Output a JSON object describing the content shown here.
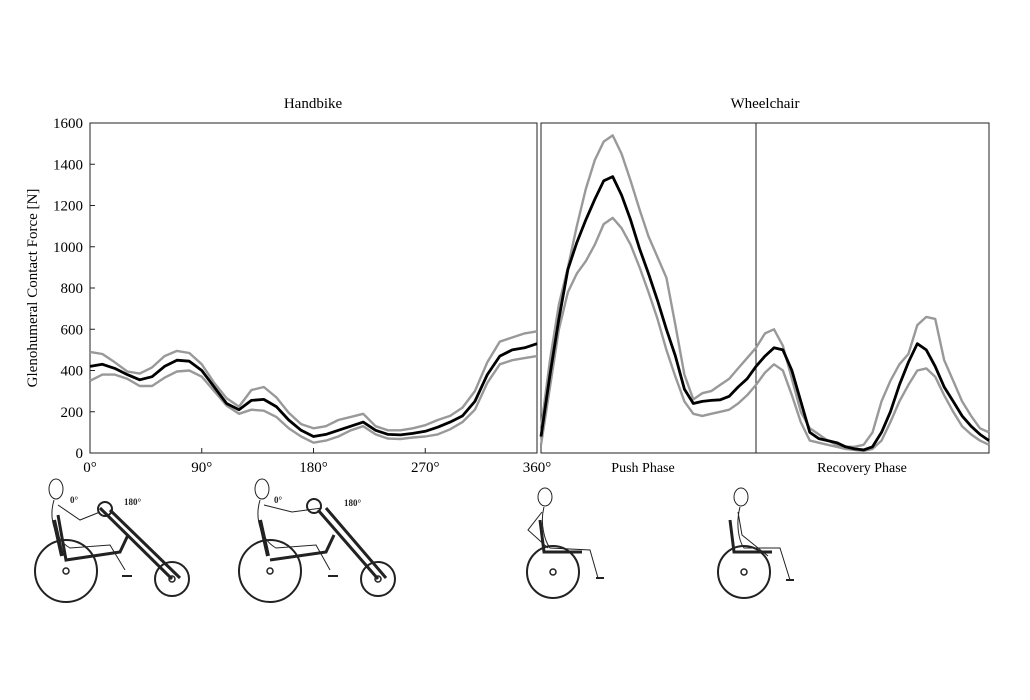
{
  "y_axis_label": "Glenohumeral Contact Force [N]",
  "colors": {
    "mean": "#000000",
    "band": "#999999",
    "axes": "#222222"
  },
  "chart_data": [
    {
      "type": "line",
      "title": "Handbike",
      "ylabel": "Glenohumeral Contact Force [N]",
      "ylim": [
        0,
        1600
      ],
      "xlim": [
        0,
        360
      ],
      "x_tick_labels": [
        "0°",
        "90°",
        "180°",
        "270°",
        "360°"
      ],
      "x_tick_values": [
        0,
        90,
        180,
        270,
        360
      ],
      "y_tick_values": [
        0,
        200,
        400,
        600,
        800,
        1000,
        1200,
        1400,
        1600
      ],
      "x": [
        0,
        10,
        20,
        30,
        40,
        50,
        60,
        70,
        80,
        90,
        100,
        110,
        120,
        130,
        140,
        150,
        160,
        170,
        180,
        190,
        200,
        210,
        220,
        230,
        240,
        250,
        260,
        270,
        280,
        290,
        300,
        310,
        320,
        330,
        340,
        350,
        360
      ],
      "series": [
        {
          "role": "upper",
          "values": [
            490,
            480,
            440,
            395,
            385,
            415,
            470,
            495,
            485,
            430,
            340,
            265,
            225,
            305,
            320,
            270,
            195,
            140,
            120,
            130,
            160,
            175,
            190,
            130,
            110,
            110,
            120,
            135,
            160,
            180,
            220,
            300,
            440,
            540,
            560,
            580,
            590
          ]
        },
        {
          "role": "mean",
          "values": [
            420,
            430,
            410,
            380,
            355,
            370,
            420,
            450,
            445,
            400,
            320,
            240,
            210,
            255,
            260,
            225,
            160,
            110,
            80,
            90,
            110,
            130,
            150,
            110,
            90,
            88,
            95,
            105,
            125,
            150,
            180,
            250,
            380,
            470,
            500,
            510,
            530
          ]
        },
        {
          "role": "lower",
          "values": [
            350,
            380,
            380,
            360,
            325,
            325,
            365,
            395,
            400,
            370,
            300,
            230,
            190,
            210,
            205,
            175,
            120,
            80,
            50,
            60,
            80,
            110,
            130,
            90,
            70,
            68,
            75,
            80,
            90,
            115,
            150,
            210,
            340,
            430,
            450,
            460,
            470
          ]
        }
      ]
    },
    {
      "type": "line",
      "title": "Wheelchair",
      "ylim": [
        0,
        1600
      ],
      "xlim": [
        0,
        100
      ],
      "phase_boundary": 48,
      "phase_labels": [
        "Push Phase",
        "Recovery Phase"
      ],
      "x": [
        0,
        2,
        4,
        6,
        8,
        10,
        12,
        14,
        16,
        18,
        20,
        22,
        24,
        26,
        28,
        30,
        32,
        34,
        36,
        38,
        40,
        42,
        44,
        46,
        48,
        50,
        52,
        54,
        56,
        58,
        60,
        62,
        64,
        66,
        68,
        70,
        72,
        74,
        76,
        78,
        80,
        82,
        84,
        86,
        88,
        90,
        92,
        94,
        96,
        98,
        100
      ],
      "series": [
        {
          "role": "upper",
          "values": [
            120,
            450,
            720,
            900,
            1100,
            1280,
            1420,
            1510,
            1540,
            1450,
            1320,
            1180,
            1050,
            950,
            850,
            620,
            380,
            260,
            290,
            300,
            330,
            360,
            410,
            460,
            510,
            580,
            600,
            520,
            360,
            200,
            120,
            90,
            60,
            40,
            30,
            30,
            40,
            100,
            250,
            350,
            430,
            480,
            620,
            660,
            650,
            450,
            350,
            250,
            180,
            120,
            100
          ]
        },
        {
          "role": "mean",
          "values": [
            80,
            380,
            650,
            890,
            1020,
            1130,
            1230,
            1320,
            1340,
            1250,
            1130,
            990,
            870,
            740,
            600,
            470,
            310,
            240,
            250,
            255,
            258,
            275,
            320,
            360,
            420,
            470,
            510,
            500,
            400,
            250,
            100,
            70,
            60,
            50,
            30,
            20,
            15,
            30,
            100,
            200,
            330,
            440,
            530,
            500,
            420,
            320,
            250,
            180,
            130,
            90,
            60
          ]
        },
        {
          "role": "lower",
          "values": [
            40,
            320,
            600,
            780,
            870,
            930,
            1010,
            1110,
            1140,
            1090,
            1010,
            900,
            780,
            650,
            500,
            370,
            250,
            190,
            180,
            190,
            200,
            210,
            240,
            280,
            330,
            390,
            430,
            400,
            280,
            150,
            60,
            50,
            40,
            30,
            20,
            15,
            10,
            20,
            60,
            150,
            250,
            330,
            400,
            410,
            370,
            280,
            200,
            130,
            90,
            60,
            40
          ]
        }
      ]
    }
  ]
}
